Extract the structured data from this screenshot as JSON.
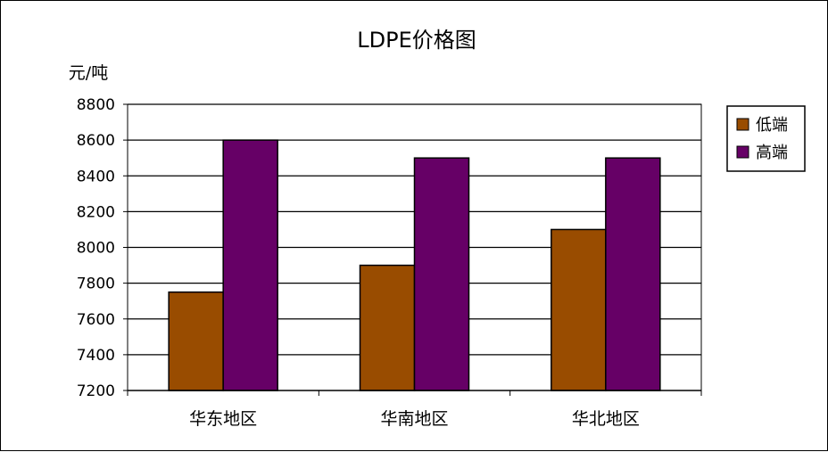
{
  "chart_data": {
    "type": "bar",
    "title": "LDPE价格图",
    "ylabel": "元/吨",
    "xlabel": "",
    "categories": [
      "华东地区",
      "华南地区",
      "华北地区"
    ],
    "series": [
      {
        "name": "低端",
        "values": [
          7750,
          7900,
          8100
        ],
        "color": "#994C00"
      },
      {
        "name": "高端",
        "values": [
          8600,
          8500,
          8500
        ],
        "color": "#660066"
      }
    ],
    "ylim": [
      7200,
      8800
    ],
    "yticks": [
      7200,
      7400,
      7600,
      7800,
      8000,
      8200,
      8400,
      8600,
      8800
    ],
    "grid": true,
    "legend": "right"
  }
}
